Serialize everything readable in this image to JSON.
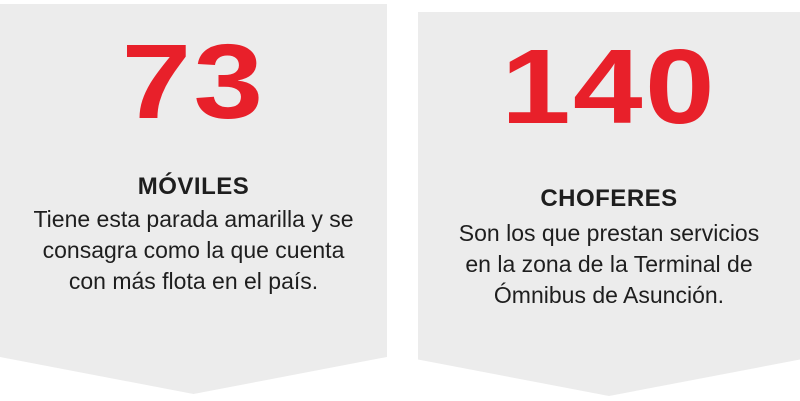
{
  "accent_color": "#e8202a",
  "text_color": "#1e1e1e",
  "card_background": "#ececec",
  "cards": [
    {
      "number": "73",
      "title": "MÓVILES",
      "description": "Tiene esta parada amarilla y se\nconsagra como la que cuenta\ncon más flota en el país."
    },
    {
      "number": "140",
      "title": "CHOFERES",
      "description": "Son los que prestan servicios\nen la zona de la Terminal de\nÓmnibus de Asunción."
    }
  ]
}
